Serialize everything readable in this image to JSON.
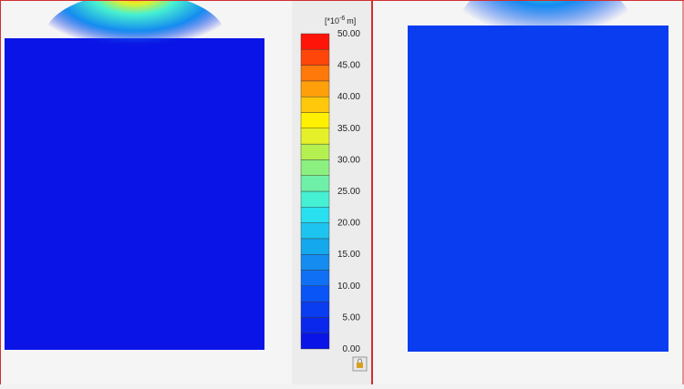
{
  "legend": {
    "unit": {
      "base": "[*10",
      "exp": "-6",
      "suffix": "m]"
    },
    "ticks": [
      "50.00",
      "45.00",
      "40.00",
      "35.00",
      "30.00",
      "25.00",
      "20.00",
      "15.00",
      "10.00",
      "5.00",
      "0.00"
    ],
    "colors": [
      "#0a14e6",
      "#0a28ec",
      "#0a3cf0",
      "#0a55f5",
      "#0f70f5",
      "#148cf0",
      "#14a8ec",
      "#1ec4f0",
      "#28e0f0",
      "#46f0d2",
      "#6ef0a8",
      "#8cf080",
      "#b4f050",
      "#e6f028",
      "#fff000",
      "#ffc80a",
      "#ffa00a",
      "#ff780a",
      "#ff460a",
      "#ff140a"
    ]
  }
}
